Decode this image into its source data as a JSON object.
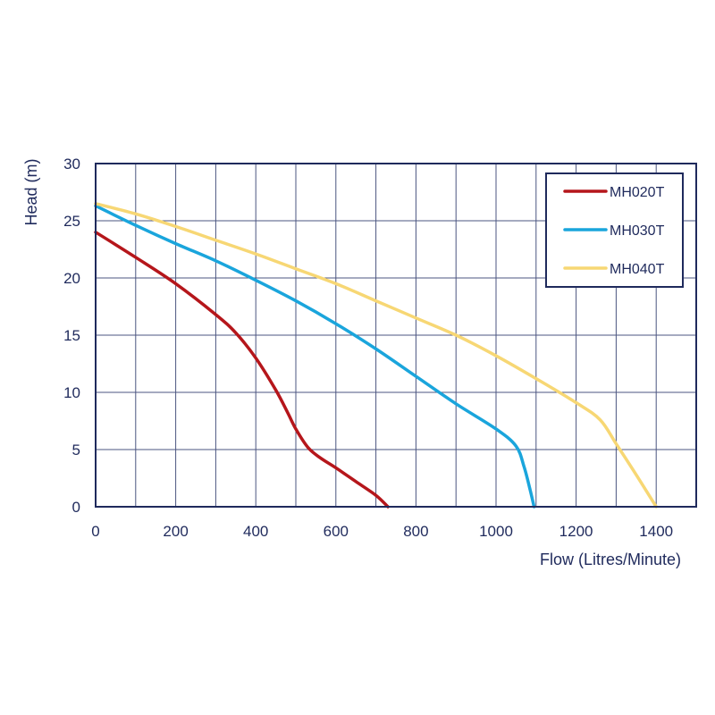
{
  "chart_data": {
    "type": "line",
    "xlabel": "Flow (Litres/Minute)",
    "ylabel": "Head (m)",
    "xlim": [
      0,
      1500
    ],
    "ylim": [
      0,
      30
    ],
    "x_ticks": [
      0,
      200,
      400,
      600,
      800,
      1000,
      1200,
      1400
    ],
    "y_ticks": [
      0,
      5,
      10,
      15,
      20,
      25,
      30
    ],
    "x_grid_step": 100,
    "grid": true,
    "legend": "top-right",
    "series": [
      {
        "name": "MH020T",
        "color": "#b5161b",
        "points": [
          [
            0,
            24
          ],
          [
            100,
            21.8
          ],
          [
            200,
            19.5
          ],
          [
            300,
            16.8
          ],
          [
            350,
            15.2
          ],
          [
            400,
            13
          ],
          [
            450,
            10.2
          ],
          [
            480,
            8.2
          ],
          [
            500,
            6.8
          ],
          [
            530,
            5.2
          ],
          [
            560,
            4.3
          ],
          [
            600,
            3.4
          ],
          [
            650,
            2.2
          ],
          [
            700,
            1
          ],
          [
            730,
            0
          ]
        ]
      },
      {
        "name": "MH030T",
        "color": "#1aa5dc",
        "points": [
          [
            0,
            26.3
          ],
          [
            100,
            24.6
          ],
          [
            200,
            23
          ],
          [
            300,
            21.5
          ],
          [
            400,
            19.8
          ],
          [
            500,
            18
          ],
          [
            600,
            16
          ],
          [
            700,
            13.8
          ],
          [
            800,
            11.4
          ],
          [
            900,
            9
          ],
          [
            1000,
            6.8
          ],
          [
            1050,
            5.3
          ],
          [
            1070,
            3.5
          ],
          [
            1085,
            1.5
          ],
          [
            1095,
            0
          ]
        ]
      },
      {
        "name": "MH040T",
        "color": "#f7d774",
        "points": [
          [
            0,
            26.5
          ],
          [
            100,
            25.6
          ],
          [
            200,
            24.5
          ],
          [
            300,
            23.3
          ],
          [
            400,
            22.1
          ],
          [
            500,
            20.8
          ],
          [
            600,
            19.5
          ],
          [
            700,
            18
          ],
          [
            800,
            16.5
          ],
          [
            900,
            15
          ],
          [
            1000,
            13.2
          ],
          [
            1100,
            11.2
          ],
          [
            1200,
            9.1
          ],
          [
            1260,
            7.6
          ],
          [
            1300,
            5.5
          ],
          [
            1350,
            2.8
          ],
          [
            1400,
            0
          ]
        ]
      }
    ]
  }
}
